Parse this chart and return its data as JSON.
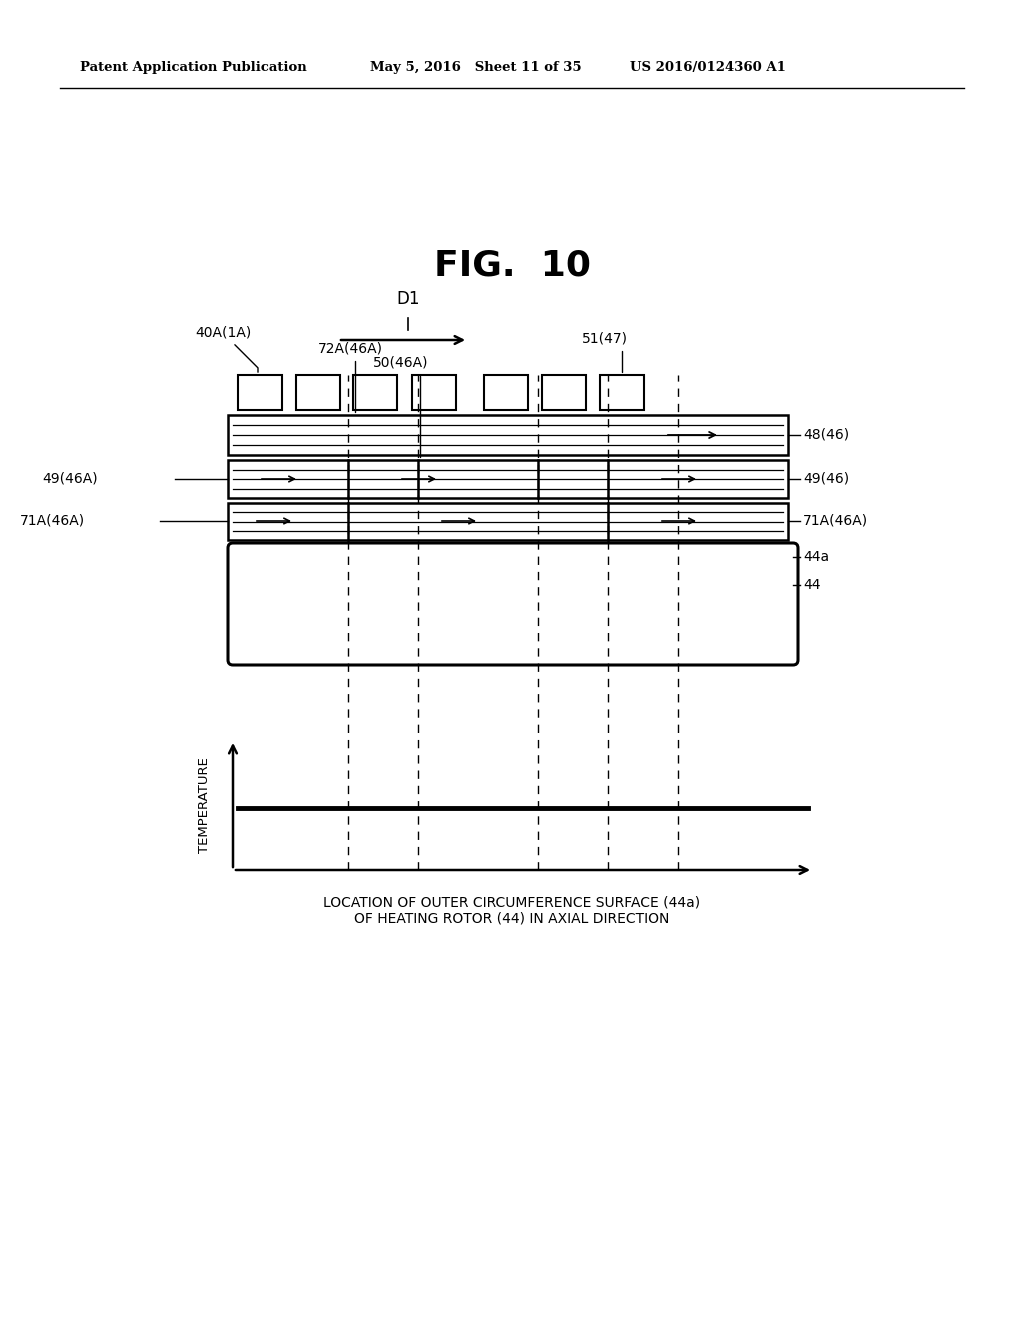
{
  "background_color": "#ffffff",
  "header_left": "Patent Application Publication",
  "header_mid": "May 5, 2016   Sheet 11 of 35",
  "header_right": "US 2016/0124360 A1",
  "fig_title": "FIG.  10"
}
